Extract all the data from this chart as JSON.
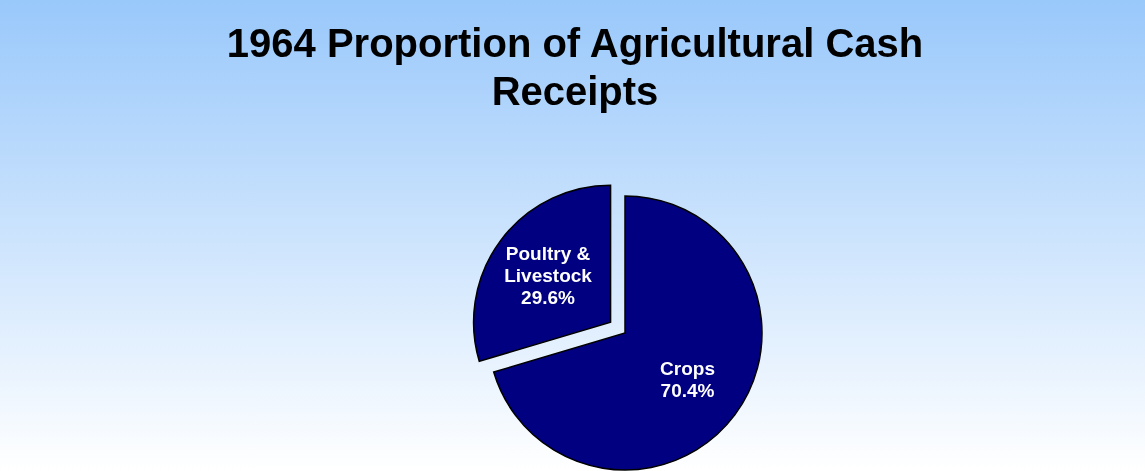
{
  "chart_data": {
    "type": "pie",
    "title": "1964 Proportion of Agricultural Cash Receipts",
    "categories": [
      "Crops",
      "Poultry & Livestock"
    ],
    "values": [
      70.4,
      29.6
    ],
    "colors": [
      "#000080",
      "#000080"
    ],
    "value_labels": [
      "70.4%",
      "29.6%"
    ],
    "legend": false
  }
}
